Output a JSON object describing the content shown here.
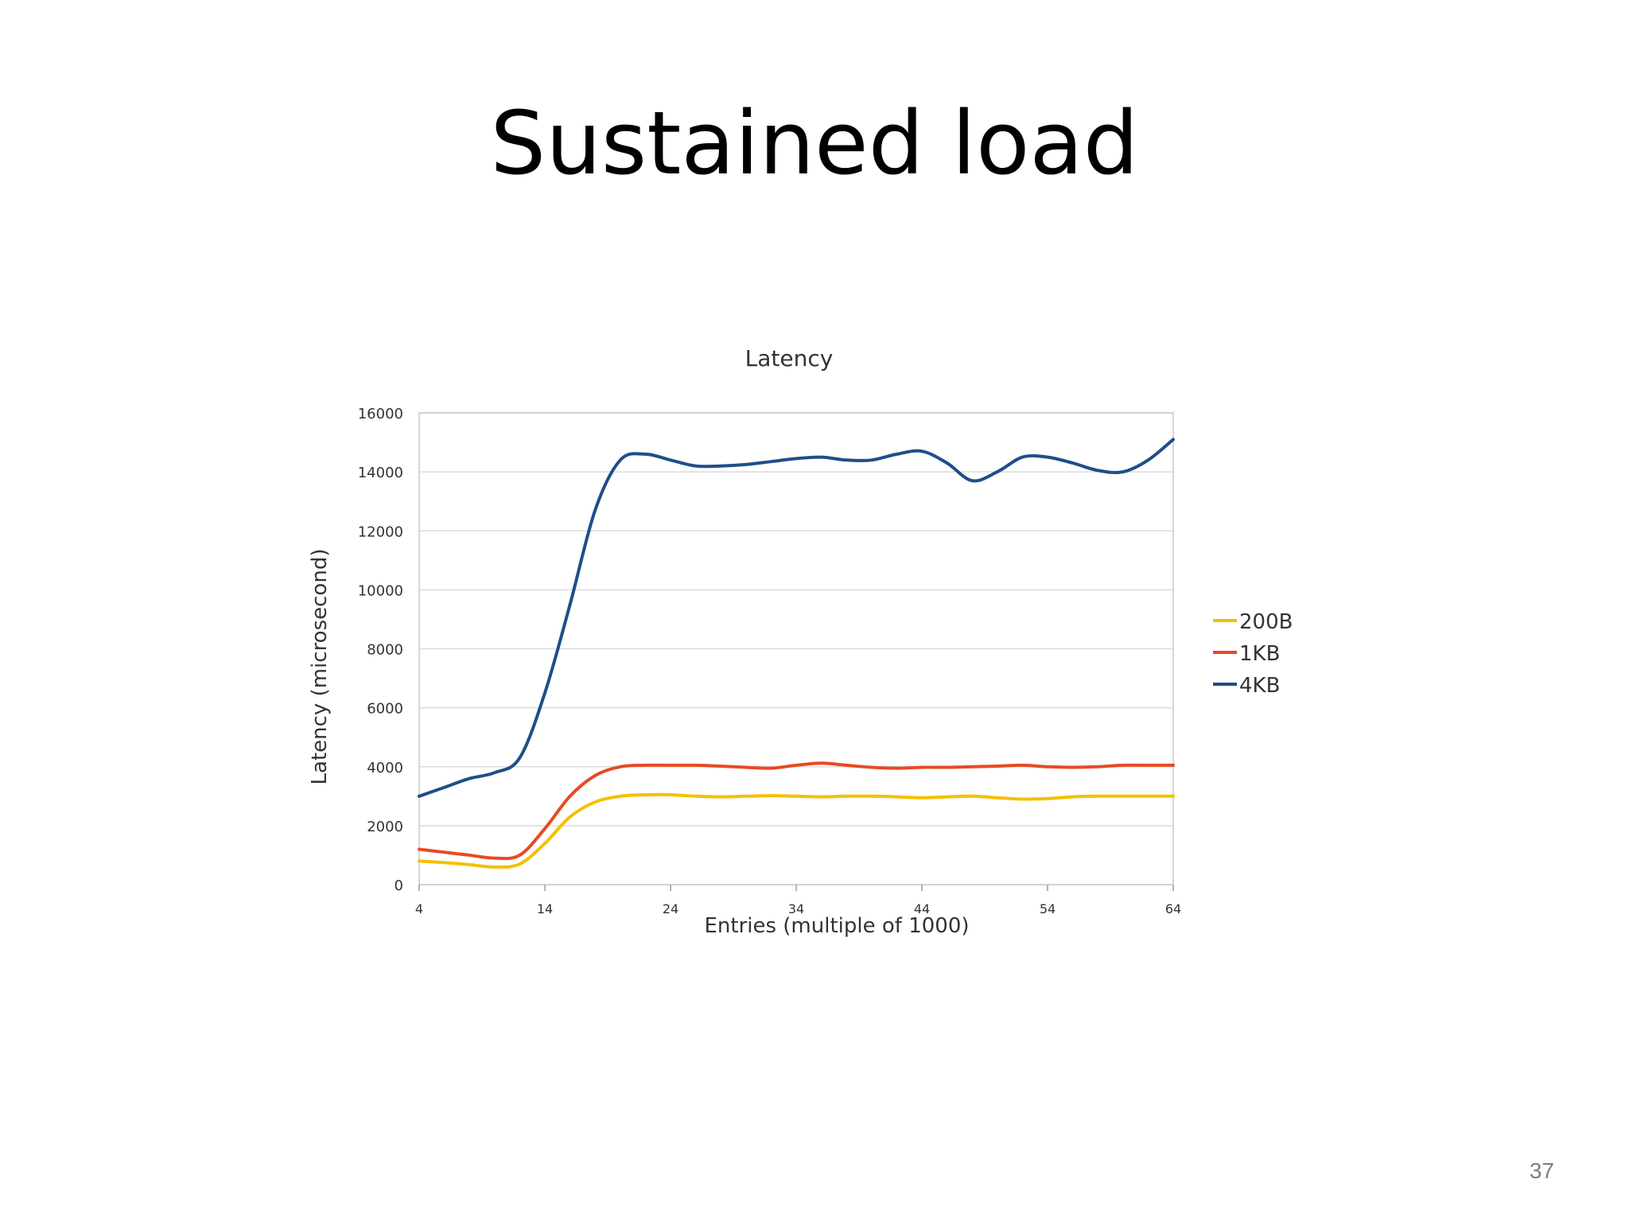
{
  "slide": {
    "title": "Sustained load",
    "page_number": "37"
  },
  "colors": {
    "series_200B": "#f5c000",
    "series_1KB": "#e84a24",
    "series_4KB": "#1f4e8a",
    "grid": "#dcdcdc",
    "axis_text": "#333333"
  },
  "chart_data": {
    "type": "line",
    "title": "Latency",
    "xlabel": "Entries (multiple of 1000)",
    "ylabel": "Latency (microsecond)",
    "xlim": [
      4,
      64
    ],
    "ylim": [
      0,
      16000
    ],
    "x_ticks": [
      4,
      14,
      24,
      34,
      44,
      54,
      64
    ],
    "y_ticks": [
      0,
      2000,
      4000,
      6000,
      8000,
      10000,
      12000,
      14000,
      16000
    ],
    "grid": true,
    "legend_position": "right",
    "x": [
      4,
      6,
      8,
      10,
      12,
      14,
      16,
      18,
      20,
      22,
      24,
      26,
      28,
      30,
      32,
      34,
      36,
      38,
      40,
      42,
      44,
      46,
      48,
      50,
      52,
      54,
      56,
      58,
      60,
      62,
      64
    ],
    "series": [
      {
        "name": "200B",
        "color_key": "series_200B",
        "values": [
          800,
          750,
          680,
          600,
          700,
          1400,
          2300,
          2800,
          3000,
          3050,
          3050,
          3000,
          2980,
          3000,
          3020,
          3000,
          2980,
          3000,
          3000,
          2980,
          2950,
          2980,
          3000,
          2950,
          2900,
          2920,
          2980,
          3000,
          3000,
          3000,
          3000
        ]
      },
      {
        "name": "1KB",
        "color_key": "series_1KB",
        "values": [
          1200,
          1100,
          1000,
          900,
          1000,
          1900,
          3000,
          3700,
          4000,
          4050,
          4050,
          4050,
          4020,
          3980,
          3950,
          4050,
          4120,
          4050,
          3980,
          3950,
          3980,
          3980,
          4000,
          4020,
          4050,
          4000,
          3980,
          4000,
          4050,
          4050,
          4050
        ]
      },
      {
        "name": "4KB",
        "color_key": "series_4KB",
        "values": [
          3000,
          3300,
          3600,
          3800,
          4300,
          6500,
          9500,
          12700,
          14400,
          14600,
          14400,
          14200,
          14200,
          14250,
          14350,
          14450,
          14500,
          14400,
          14400,
          14600,
          14700,
          14300,
          13700,
          14000,
          14500,
          14500,
          14300,
          14050,
          14000,
          14400,
          15100
        ]
      }
    ]
  }
}
